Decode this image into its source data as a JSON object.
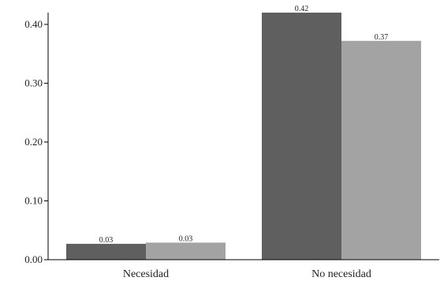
{
  "chart_data": {
    "type": "bar",
    "categories": [
      "Necesidad",
      "No necesidad"
    ],
    "series": [
      {
        "values": [
          0.027,
          0.42
        ],
        "labels": [
          "0.03",
          "0.42"
        ],
        "color": "#5f5f5f"
      },
      {
        "values": [
          0.029,
          0.372
        ],
        "labels": [
          "0.03",
          "0.37"
        ],
        "color": "#a3a3a3"
      }
    ],
    "yticks": [
      0.0,
      0.1,
      0.2,
      0.3,
      0.4
    ],
    "ytick_labels": [
      "0.00",
      "0.10",
      "0.20",
      "0.30",
      "0.40"
    ],
    "ylim": [
      0,
      0.42
    ],
    "grid": false,
    "legend": "none"
  }
}
